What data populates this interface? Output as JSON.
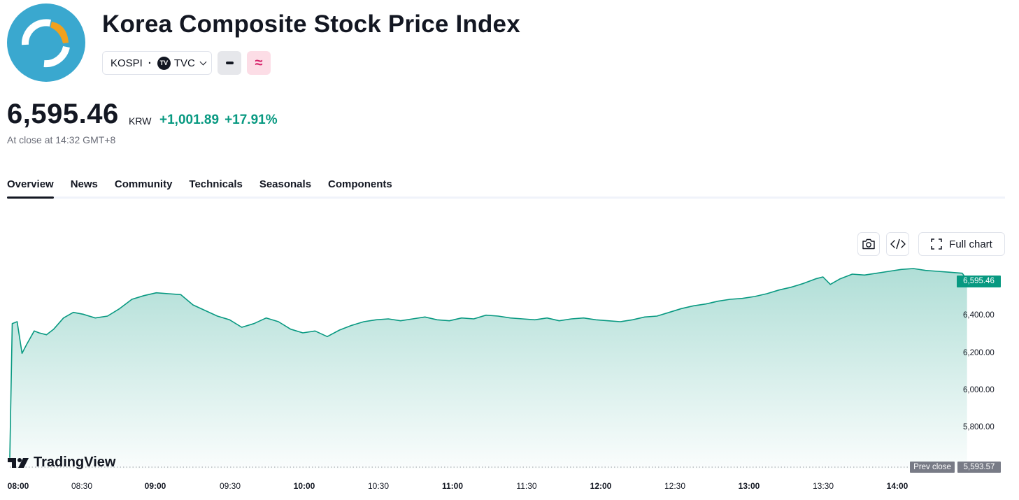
{
  "header": {
    "title": "Korea Composite Stock Price Index",
    "symbol": "KOSPI",
    "separator": "·",
    "exchange": "TVC",
    "exchange_badge": "TV",
    "tag_icons": [
      "minus-tag-icon",
      "approx-tag-icon"
    ],
    "approx_glyph": "≈"
  },
  "quote": {
    "price": "6,595.46",
    "currency": "KRW",
    "change": "+1,001.89",
    "change_percent": "+17.91%",
    "status": "At close at 14:32 GMT+8"
  },
  "tabs": [
    "Overview",
    "News",
    "Community",
    "Technicals",
    "Seasonals",
    "Components"
  ],
  "active_tab": "Overview",
  "toolbar": {
    "snapshot_icon": "camera-icon",
    "embed_icon": "code-icon",
    "full_chart_label": "Full chart"
  },
  "brand": "TradingView",
  "chart_data": {
    "type": "area",
    "line_color": "#089981",
    "y_ticks": [
      "6,400.00",
      "6,200.00",
      "6,000.00",
      "5,800.00"
    ],
    "x_ticks": [
      {
        "label": "08:00",
        "bold": true
      },
      {
        "label": "08:30",
        "bold": false
      },
      {
        "label": "09:00",
        "bold": true
      },
      {
        "label": "09:30",
        "bold": false
      },
      {
        "label": "10:00",
        "bold": true
      },
      {
        "label": "10:30",
        "bold": false
      },
      {
        "label": "11:00",
        "bold": true
      },
      {
        "label": "11:30",
        "bold": false
      },
      {
        "label": "12:00",
        "bold": true
      },
      {
        "label": "12:30",
        "bold": false
      },
      {
        "label": "13:00",
        "bold": true
      },
      {
        "label": "13:30",
        "bold": false
      },
      {
        "label": "14:00",
        "bold": true
      }
    ],
    "last_value_label": "6,595.46",
    "prev_close_label": "Prev close",
    "prev_close_value": "5,593.57",
    "series": [
      {
        "x": [
          "08:00",
          "08:01",
          "08:03",
          "08:05",
          "08:07",
          "08:10",
          "08:12",
          "08:15",
          "08:18",
          "08:22",
          "08:26",
          "08:30",
          "08:35",
          "08:40",
          "08:45",
          "08:50",
          "08:55",
          "09:00",
          "09:05",
          "09:10",
          "09:15",
          "09:20",
          "09:25",
          "09:30",
          "09:35",
          "09:40",
          "09:45",
          "09:50",
          "09:55",
          "10:00",
          "10:05",
          "10:10",
          "10:15",
          "10:20",
          "10:25",
          "10:30",
          "10:35",
          "10:40",
          "10:45",
          "10:50",
          "10:55",
          "11:00",
          "11:05",
          "11:10",
          "11:15",
          "11:20",
          "11:25",
          "11:30",
          "11:35",
          "11:40",
          "11:45",
          "11:50",
          "11:55",
          "12:00",
          "12:05",
          "12:10",
          "12:15",
          "12:20",
          "12:25",
          "12:30",
          "12:35",
          "12:40",
          "12:45",
          "12:50",
          "12:55",
          "13:00",
          "13:05",
          "13:10",
          "13:15",
          "13:20",
          "13:25",
          "13:30",
          "13:33",
          "13:36",
          "13:40",
          "13:45",
          "13:50",
          "13:55",
          "14:00",
          "14:05",
          "14:10",
          "14:15",
          "14:20",
          "14:25",
          "14:30",
          "14:32"
        ],
        "y": [
          5640,
          6360,
          6370,
          6200,
          6250,
          6320,
          6310,
          6300,
          6330,
          6390,
          6420,
          6410,
          6390,
          6400,
          6440,
          6490,
          6510,
          6525,
          6520,
          6515,
          6460,
          6430,
          6400,
          6380,
          6340,
          6360,
          6390,
          6370,
          6330,
          6310,
          6320,
          6290,
          6325,
          6350,
          6370,
          6380,
          6385,
          6375,
          6385,
          6395,
          6380,
          6375,
          6390,
          6385,
          6405,
          6400,
          6390,
          6385,
          6380,
          6390,
          6375,
          6385,
          6390,
          6380,
          6375,
          6370,
          6380,
          6395,
          6400,
          6420,
          6440,
          6455,
          6465,
          6480,
          6490,
          6495,
          6505,
          6520,
          6540,
          6555,
          6575,
          6600,
          6610,
          6570,
          6600,
          6625,
          6620,
          6630,
          6640,
          6650,
          6655,
          6645,
          6640,
          6635,
          6630,
          6595
        ]
      }
    ]
  }
}
